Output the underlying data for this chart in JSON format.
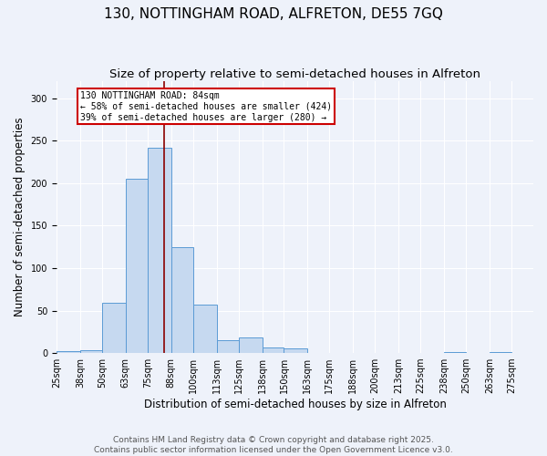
{
  "title_line1": "130, NOTTINGHAM ROAD, ALFRETON, DE55 7GQ",
  "title_line2": "Size of property relative to semi-detached houses in Alfreton",
  "xlabel": "Distribution of semi-detached houses by size in Alfreton",
  "ylabel": "Number of semi-detached properties",
  "bin_labels": [
    "25sqm",
    "38sqm",
    "50sqm",
    "63sqm",
    "75sqm",
    "88sqm",
    "100sqm",
    "113sqm",
    "125sqm",
    "138sqm",
    "150sqm",
    "163sqm",
    "175sqm",
    "188sqm",
    "200sqm",
    "213sqm",
    "225sqm",
    "238sqm",
    "250sqm",
    "263sqm",
    "275sqm"
  ],
  "bin_edges": [
    25,
    38,
    50,
    63,
    75,
    88,
    100,
    113,
    125,
    138,
    150,
    163,
    175,
    188,
    200,
    213,
    225,
    238,
    250,
    263,
    275
  ],
  "bar_heights": [
    2,
    3,
    59,
    205,
    242,
    125,
    57,
    15,
    18,
    6,
    5,
    0,
    0,
    0,
    0,
    0,
    0,
    1,
    0,
    1
  ],
  "bar_color": "#c6d9f0",
  "bar_edge_color": "#5b9bd5",
  "property_size": 84,
  "vline_color": "#8b0000",
  "annotation_text_line1": "130 NOTTINGHAM ROAD: 84sqm",
  "annotation_text_line2": "← 58% of semi-detached houses are smaller (424)",
  "annotation_text_line3": "39% of semi-detached houses are larger (280) →",
  "annotation_box_color": "#ffffff",
  "annotation_box_edge_color": "#cc0000",
  "ylim": [
    0,
    320
  ],
  "yticks": [
    0,
    50,
    100,
    150,
    200,
    250,
    300
  ],
  "footer_line1": "Contains HM Land Registry data © Crown copyright and database right 2025.",
  "footer_line2": "Contains public sector information licensed under the Open Government Licence v3.0.",
  "background_color": "#eef2fa",
  "grid_color": "#ffffff",
  "title_fontsize": 11,
  "subtitle_fontsize": 9.5,
  "axis_label_fontsize": 8.5,
  "tick_fontsize": 7,
  "annotation_fontsize": 7,
  "footer_fontsize": 6.5
}
